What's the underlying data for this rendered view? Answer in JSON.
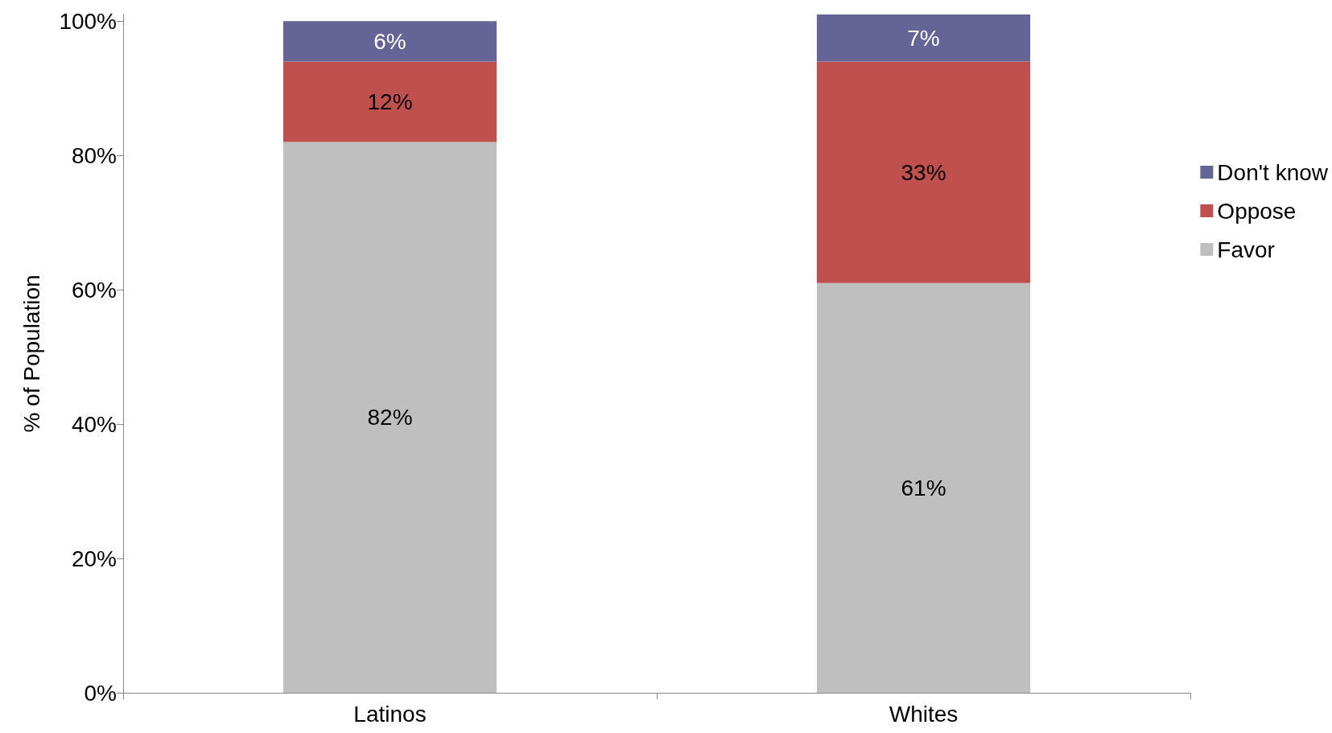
{
  "chart_data": {
    "type": "bar",
    "stacked": true,
    "ylabel": "% of Population",
    "categories": [
      "Latinos",
      "Whites"
    ],
    "series": [
      {
        "name": "Favor",
        "color": "#bfbfbf",
        "values": [
          82,
          61
        ],
        "value_labels": [
          "82%",
          "61%"
        ]
      },
      {
        "name": "Oppose",
        "color": "#c0504d",
        "values": [
          12,
          33
        ],
        "value_labels": [
          "12%",
          "33%"
        ]
      },
      {
        "name": "Don't know",
        "color": "#646496",
        "values": [
          6,
          7
        ],
        "value_labels": [
          "6%",
          "7%"
        ]
      }
    ],
    "ylim": [
      0,
      101
    ],
    "yticks": [
      {
        "value": 0,
        "label": "0%"
      },
      {
        "value": 20,
        "label": "20%"
      },
      {
        "value": 40,
        "label": "40%"
      },
      {
        "value": 60,
        "label": "60%"
      },
      {
        "value": 80,
        "label": "80%"
      },
      {
        "value": 100,
        "label": "100%"
      }
    ],
    "grid": false,
    "legend": "right"
  }
}
